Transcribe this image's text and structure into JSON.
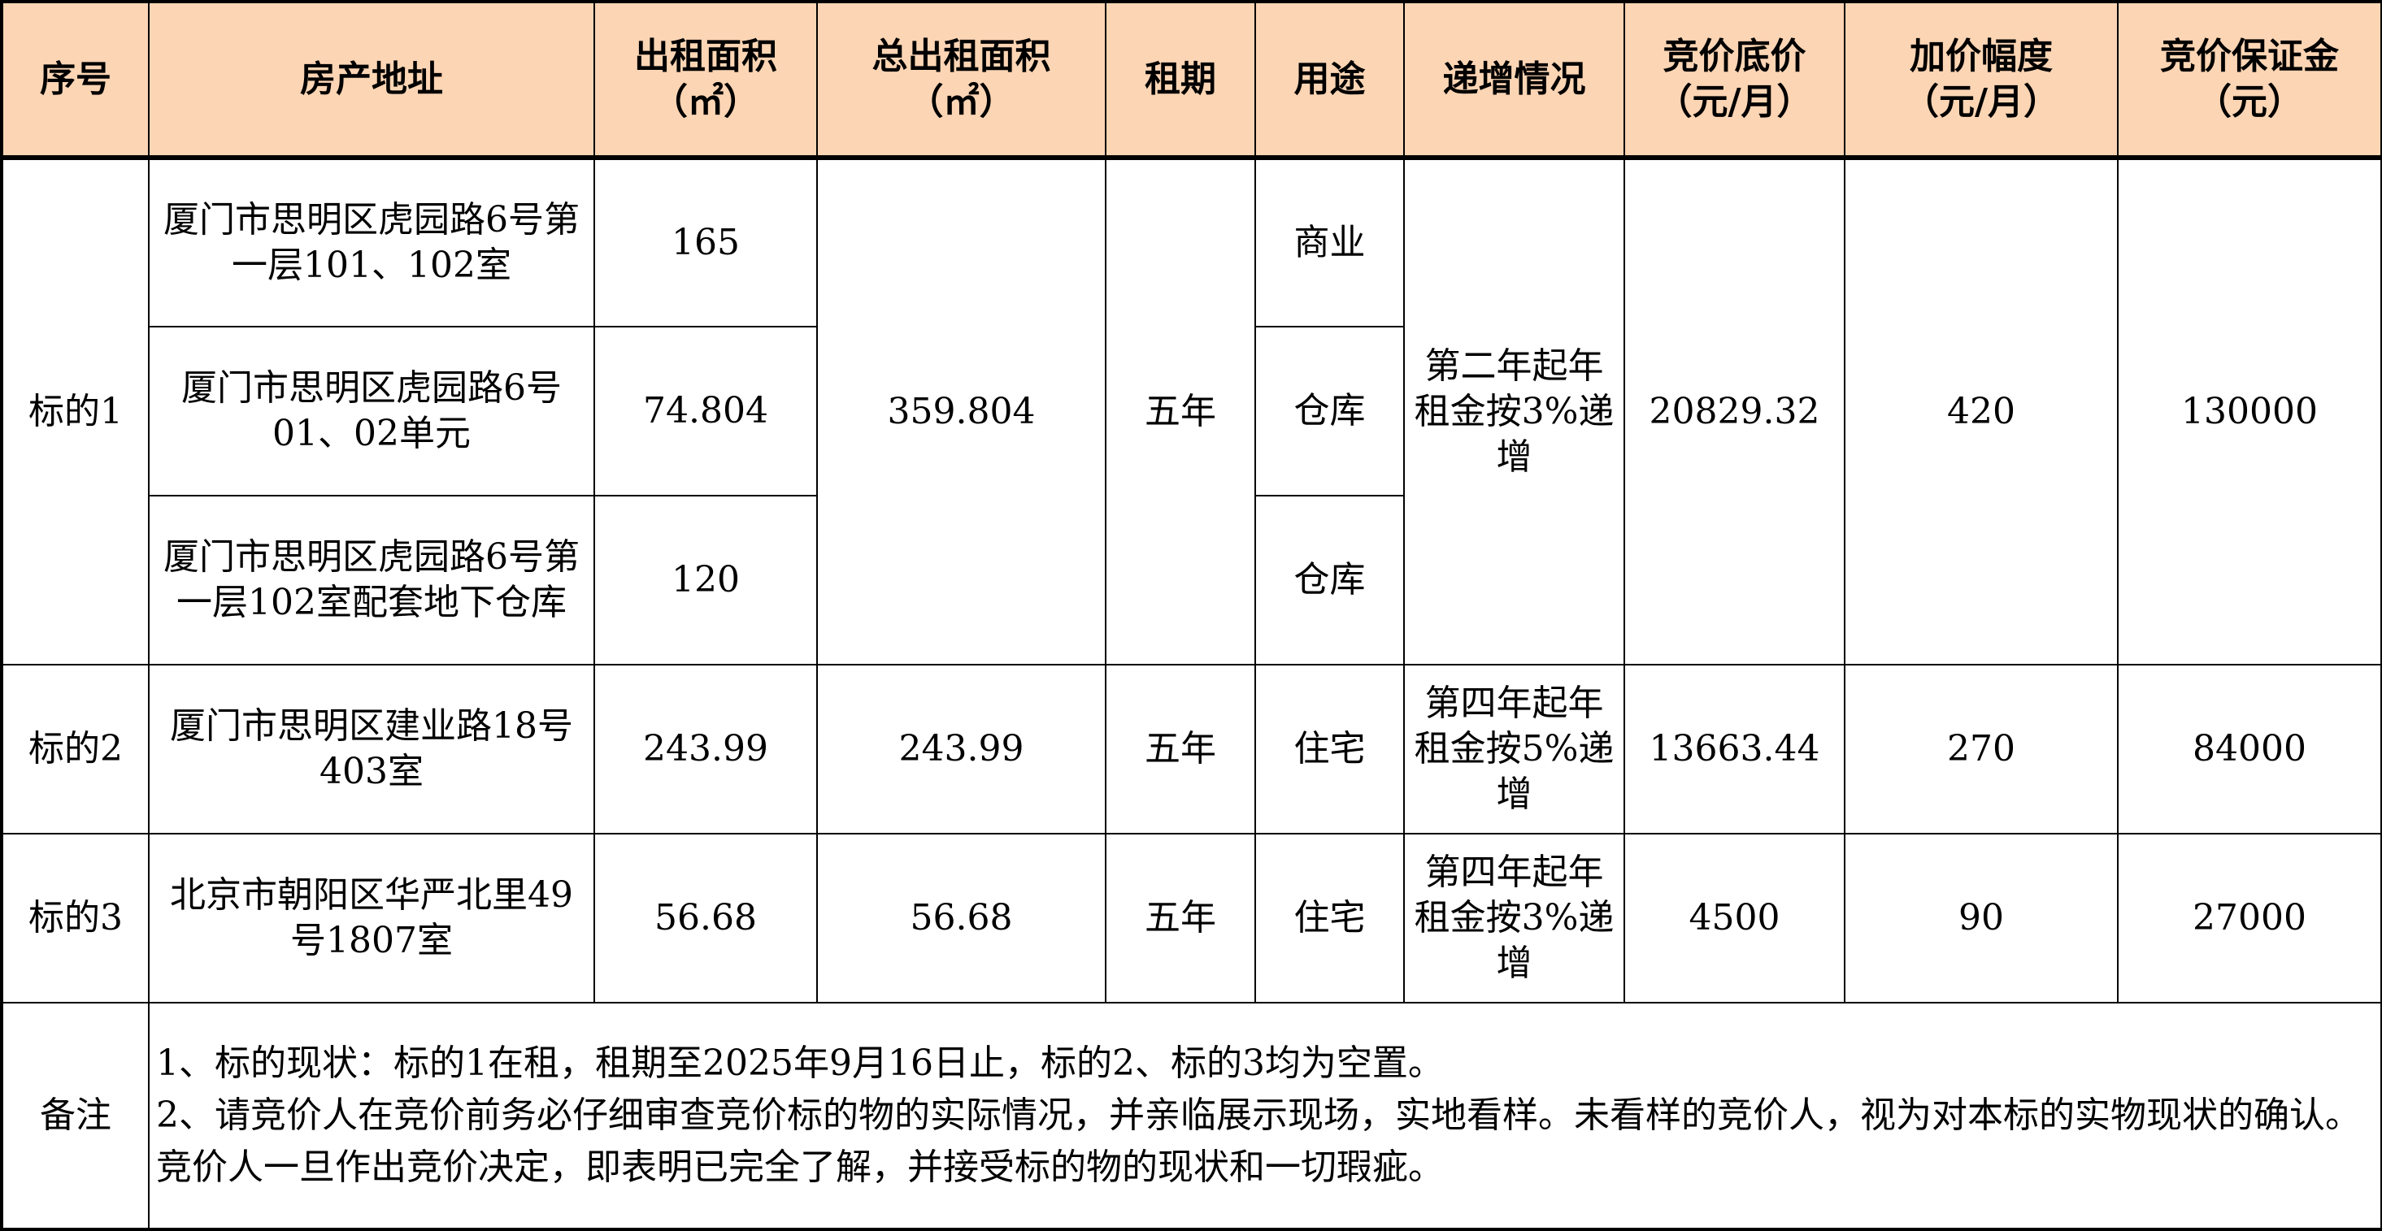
{
  "header": {
    "columns": [
      "序号",
      "房产地址",
      "出租面积（㎡）",
      "总出租面积（㎡）",
      "租期",
      "用途",
      "递增情况",
      "竞价底价（元/月）",
      "加价幅度（元/月）",
      "竞价保证金（元）"
    ],
    "col_lines": [
      [
        "序号"
      ],
      [
        "房产地址"
      ],
      [
        "出租面积",
        "（㎡）"
      ],
      [
        "总出租面积",
        "（㎡）"
      ],
      [
        "租期"
      ],
      [
        "用途"
      ],
      [
        "递增情况"
      ],
      [
        "竞价底价",
        "（元/月）"
      ],
      [
        "加价幅度",
        "（元/月）"
      ],
      [
        "竞价保证金",
        "（元）"
      ]
    ],
    "background": "#FCD5B4"
  },
  "lots": [
    {
      "id": "标的1",
      "units": [
        {
          "address": "厦门市思明区虎园路6号第一层101、102室",
          "area": "165",
          "use": "商业"
        },
        {
          "address": "厦门市思明区虎园路6号01、02单元",
          "area": "74.804",
          "use": "仓库"
        },
        {
          "address": "厦门市思明区虎园路6号第一层102室配套地下仓库",
          "area": "120",
          "use": "仓库"
        }
      ],
      "total_area": "359.804",
      "term": "五年",
      "increase": "第二年起年租金按3%递增",
      "base_price": "20829.32",
      "increment": "420",
      "deposit": "130000"
    },
    {
      "id": "标的2",
      "units": [
        {
          "address": "厦门市思明区建业路18号403室",
          "area": "243.99",
          "use": "住宅"
        }
      ],
      "total_area": "243.99",
      "term": "五年",
      "increase": "第四年起年租金按5%递增",
      "base_price": "13663.44",
      "increment": "270",
      "deposit": "84000"
    },
    {
      "id": "标的3",
      "units": [
        {
          "address": "北京市朝阳区华严北里49号1807室",
          "area": "56.68",
          "use": "住宅"
        }
      ],
      "total_area": "56.68",
      "term": "五年",
      "increase": "第四年起年租金按3%递增",
      "base_price": "4500",
      "increment": "90",
      "deposit": "27000"
    }
  ],
  "notes": {
    "label": "备注",
    "lines": [
      "1、标的现状：标的1在租，租期至2025年9月16日止，标的2、标的3均为空置。",
      "2、请竞价人在竞价前务必仔细审查竞价标的物的实际情况，并亲临展示现场，实地看样。未看样的竞价人，视为对本标的实物现状的确认。竞价人一旦作出竞价决定，即表明已完全了解，并接受标的物的现状和一切瑕疵。"
    ]
  }
}
